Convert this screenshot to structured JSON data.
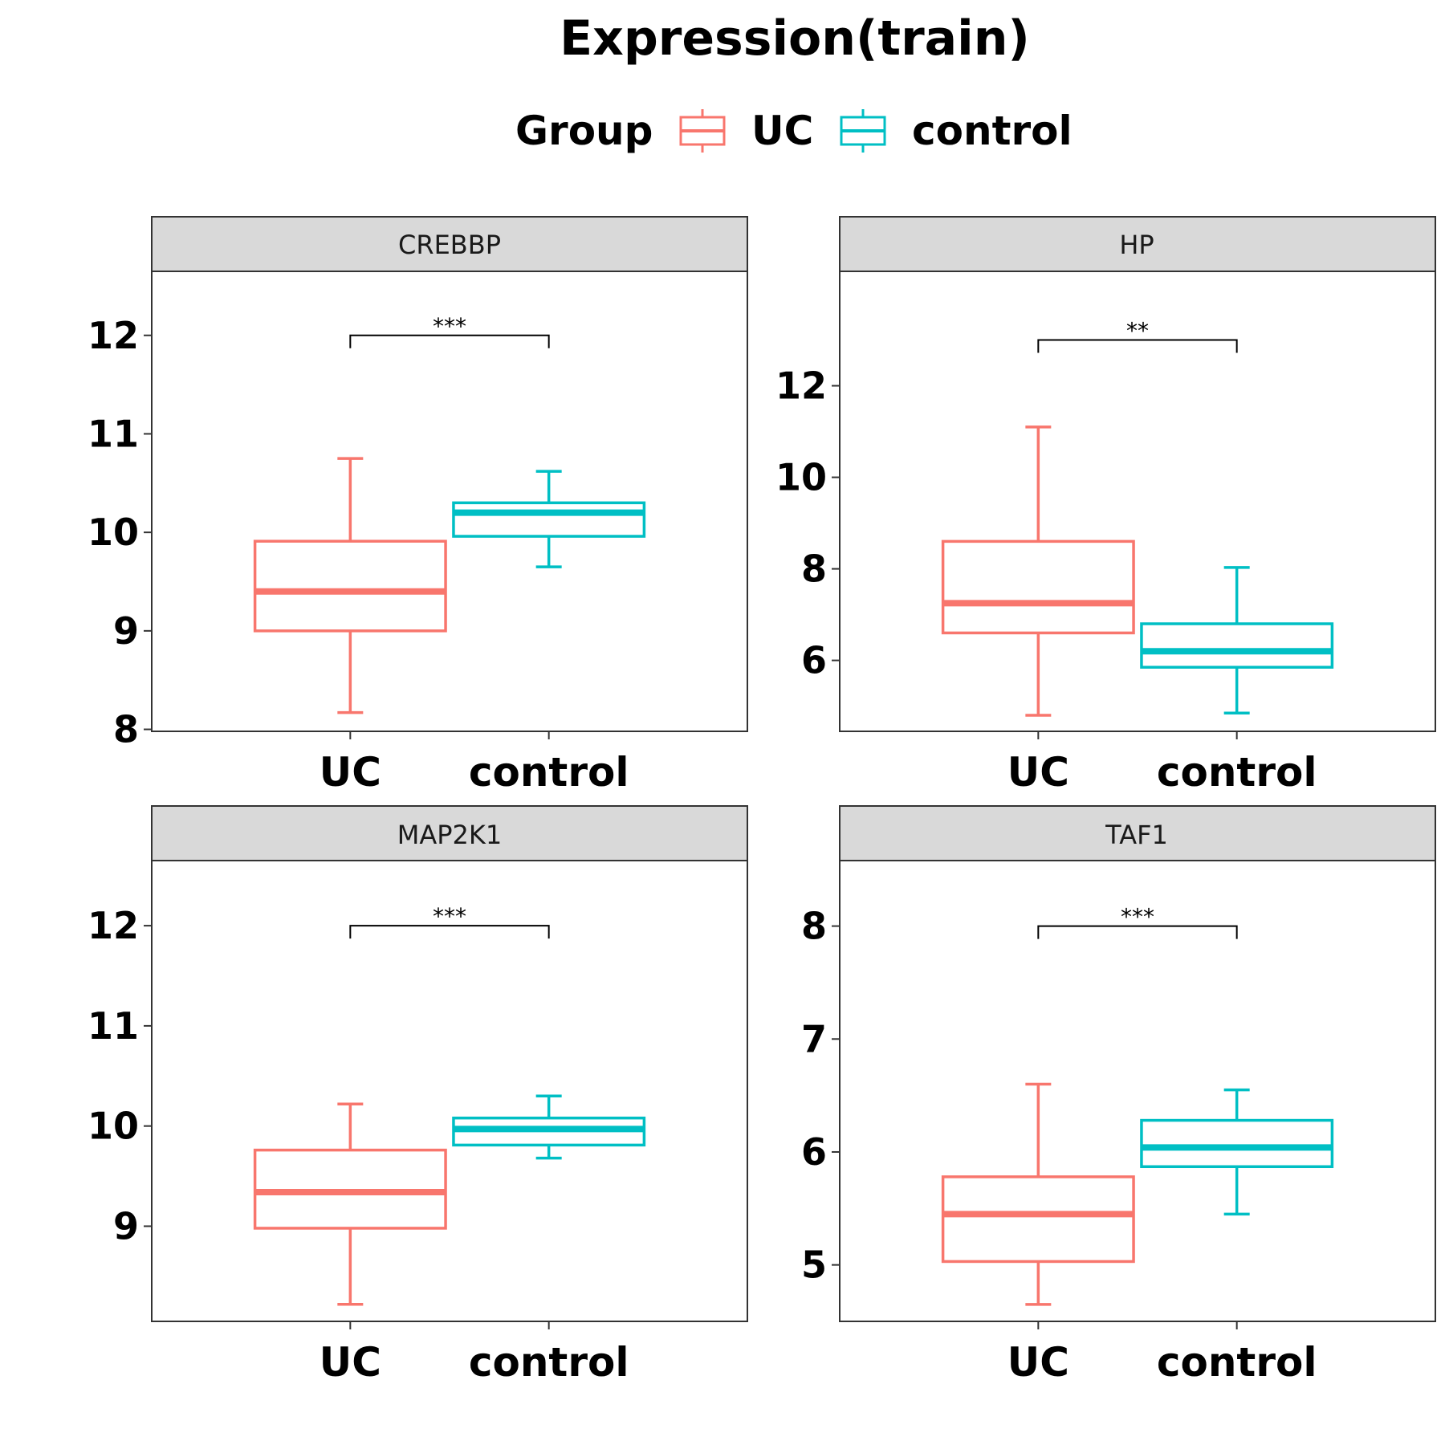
{
  "title": "Expression(train)",
  "legend": {
    "title": "Group",
    "items": [
      {
        "label": "UC",
        "color": "#F8766D"
      },
      {
        "label": "control",
        "color": "#00BFC4"
      }
    ]
  },
  "chart_data": [
    {
      "type": "box",
      "facet": "CREBBP",
      "categories": [
        "UC",
        "control"
      ],
      "ylim": [
        7.98,
        12.65
      ],
      "yticks": [
        8,
        9,
        10,
        11,
        12
      ],
      "boxes": [
        {
          "group": "UC",
          "min": 8.17,
          "q1": 9.0,
          "median": 9.4,
          "q3": 9.91,
          "max": 10.75
        },
        {
          "group": "control",
          "min": 9.65,
          "q1": 9.96,
          "median": 10.2,
          "q3": 10.3,
          "max": 10.62
        }
      ],
      "significance": {
        "label": "***",
        "y": 12.0
      }
    },
    {
      "type": "box",
      "facet": "HP",
      "categories": [
        "UC",
        "control"
      ],
      "ylim": [
        4.45,
        14.5
      ],
      "yticks": [
        6,
        8,
        10,
        12
      ],
      "boxes": [
        {
          "group": "UC",
          "min": 4.8,
          "q1": 6.6,
          "median": 7.25,
          "q3": 8.6,
          "max": 11.1
        },
        {
          "group": "control",
          "min": 4.85,
          "q1": 5.85,
          "median": 6.2,
          "q3": 6.8,
          "max": 8.03
        }
      ],
      "significance": {
        "label": "**",
        "y": 13.0
      }
    },
    {
      "type": "box",
      "facet": "MAP2K1",
      "categories": [
        "UC",
        "control"
      ],
      "ylim": [
        8.05,
        12.65
      ],
      "yticks": [
        9,
        10,
        11,
        12
      ],
      "boxes": [
        {
          "group": "UC",
          "min": 8.22,
          "q1": 8.98,
          "median": 9.34,
          "q3": 9.76,
          "max": 10.22
        },
        {
          "group": "control",
          "min": 9.68,
          "q1": 9.81,
          "median": 9.97,
          "q3": 10.08,
          "max": 10.3
        }
      ],
      "significance": {
        "label": "***",
        "y": 12.0
      }
    },
    {
      "type": "box",
      "facet": "TAF1",
      "categories": [
        "UC",
        "control"
      ],
      "ylim": [
        4.5,
        8.58
      ],
      "yticks": [
        5,
        6,
        7,
        8
      ],
      "boxes": [
        {
          "group": "UC",
          "min": 4.65,
          "q1": 5.03,
          "median": 5.45,
          "q3": 5.78,
          "max": 6.6
        },
        {
          "group": "control",
          "min": 5.45,
          "q1": 5.87,
          "median": 6.04,
          "q3": 6.28,
          "max": 6.55
        }
      ],
      "significance": {
        "label": "***",
        "y": 8.0
      }
    }
  ]
}
